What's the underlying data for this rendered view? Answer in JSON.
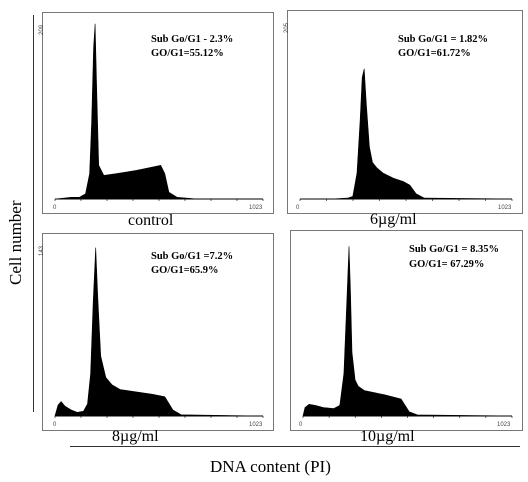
{
  "figure": {
    "ylabel": "Cell number",
    "xlabel": "DNA content (PI)"
  },
  "chart_data": [
    {
      "type": "area",
      "title": "control",
      "annotation": [
        "Sub Go/G1 - 2.3%",
        "GO/G1=55.12%"
      ],
      "xlim": [
        0,
        1023
      ],
      "ylim": [
        0,
        209
      ],
      "y_tick_top": "209",
      "x_ticks": [
        "0",
        "1023"
      ],
      "x": [
        0,
        40,
        80,
        120,
        150,
        170,
        180,
        190,
        197,
        205,
        215,
        240,
        300,
        400,
        480,
        520,
        540,
        560,
        600,
        700,
        1023
      ],
      "values": [
        0,
        1,
        2,
        2,
        6,
        30,
        90,
        180,
        208,
        130,
        40,
        28,
        30,
        34,
        38,
        40,
        30,
        8,
        2,
        0,
        0
      ]
    },
    {
      "type": "area",
      "title": "6µg/ml",
      "annotation": [
        "Sub Go/G1 = 1.82%",
        "GO/G1=61.72%"
      ],
      "xlim": [
        0,
        1023
      ],
      "ylim": [
        0,
        205
      ],
      "y_tick_top": "205",
      "x_ticks": [
        "0",
        "1023"
      ],
      "x": [
        0,
        150,
        230,
        255,
        275,
        290,
        300,
        310,
        320,
        335,
        350,
        370,
        400,
        450,
        500,
        530,
        560,
        600,
        1023
      ],
      "values": [
        0,
        0,
        1,
        3,
        30,
        90,
        140,
        150,
        110,
        60,
        42,
        36,
        30,
        24,
        20,
        16,
        6,
        1,
        0
      ]
    },
    {
      "type": "area",
      "title": "8µg/ml",
      "annotation": [
        "Sub Go/G1 =7.2%",
        "GO/G1=65.9%"
      ],
      "xlim": [
        0,
        1023
      ],
      "ylim": [
        0,
        143
      ],
      "y_tick_top": "143",
      "x_ticks": [
        "0",
        "1023"
      ],
      "x": [
        0,
        15,
        30,
        50,
        80,
        110,
        140,
        160,
        175,
        188,
        200,
        210,
        225,
        250,
        280,
        320,
        400,
        480,
        540,
        580,
        620,
        1023
      ],
      "values": [
        0,
        9,
        12,
        8,
        5,
        3,
        4,
        10,
        35,
        95,
        140,
        100,
        50,
        32,
        26,
        22,
        20,
        18,
        16,
        5,
        1,
        0
      ]
    },
    {
      "type": "area",
      "title": "10µg/ml",
      "annotation": [
        "Sub Go/G1 = 8.35%",
        "GO/G1= 67.29%"
      ],
      "xlim": [
        0,
        1023
      ],
      "ylim": [
        0,
        165
      ],
      "y_tick_top": "",
      "x_ticks": [
        "0",
        "1023"
      ],
      "x": [
        0,
        10,
        30,
        60,
        100,
        150,
        180,
        200,
        215,
        225,
        232,
        240,
        255,
        270,
        300,
        350,
        400,
        440,
        480,
        520,
        560,
        1023
      ],
      "values": [
        0,
        8,
        11,
        10,
        8,
        7,
        10,
        40,
        110,
        160,
        120,
        60,
        34,
        28,
        24,
        22,
        20,
        18,
        16,
        4,
        1,
        0
      ]
    }
  ]
}
